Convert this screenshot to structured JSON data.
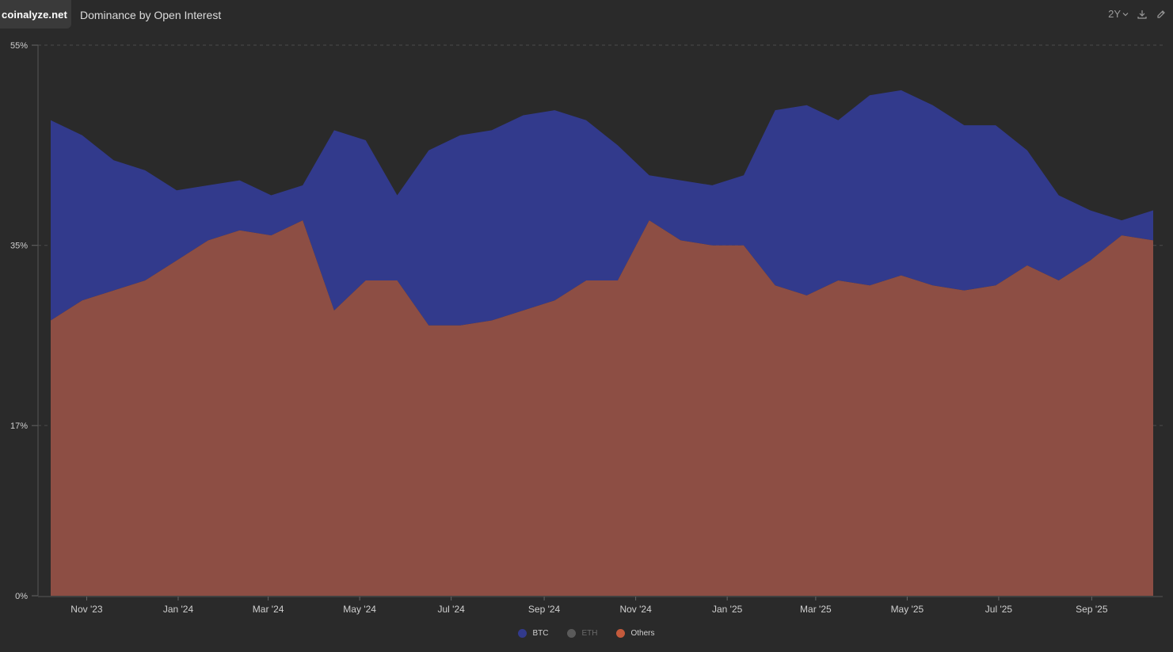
{
  "brand": "coinalyze.net",
  "title": "Dominance by Open Interest",
  "toolbar": {
    "range_label": "2Y",
    "download_icon": "download-icon",
    "edit_icon": "edit-icon"
  },
  "colors": {
    "background": "#2a2a2a",
    "btc": "#323a8c",
    "eth": "#646464",
    "others": "#8d4e44",
    "eth_legend_dot": "#5a5a5a",
    "others_legend_dot": "#c45a3c",
    "grid": "#4a4a4a",
    "axis_text": "#cfcfcf"
  },
  "chart_data": {
    "type": "area",
    "stacked": true,
    "x_ticks": [
      "Nov '23",
      "Jan '24",
      "Mar '24",
      "May '24",
      "Jul '24",
      "Sep '24",
      "Nov '24",
      "Jan '25",
      "Mar '25",
      "May '25",
      "Jul '25",
      "Sep '25"
    ],
    "y_ticks": [
      "55%",
      "35%",
      "17%",
      "0%"
    ],
    "ylim": [
      0,
      55
    ],
    "grid": "horizontal-dashed",
    "legend_position": "bottom-center",
    "legend": [
      "BTC",
      "ETH",
      "Others"
    ],
    "series": [
      {
        "name": "Others",
        "dates": [
          "2023-10-08",
          "2023-10-29",
          "2023-11-19",
          "2023-12-10",
          "2023-12-31",
          "2024-01-21",
          "2024-02-11",
          "2024-03-03",
          "2024-03-24",
          "2024-04-14",
          "2024-05-05",
          "2024-05-26",
          "2024-06-16",
          "2024-07-07",
          "2024-07-28",
          "2024-08-18",
          "2024-09-08",
          "2024-09-29",
          "2024-10-20",
          "2024-11-10",
          "2024-12-01",
          "2024-12-22",
          "2025-01-12",
          "2025-02-02",
          "2025-02-23",
          "2025-03-16",
          "2025-04-06",
          "2025-04-27",
          "2025-05-18",
          "2025-06-08",
          "2025-06-29",
          "2025-07-20",
          "2025-08-10",
          "2025-08-31",
          "2025-09-21",
          "2025-10-12"
        ],
        "values": [
          27.5,
          29.5,
          30.5,
          31.5,
          33.5,
          35.5,
          36.5,
          36.0,
          37.5,
          28.5,
          31.5,
          31.5,
          27.0,
          27.0,
          27.5,
          28.5,
          29.5,
          31.5,
          31.5,
          37.5,
          35.5,
          35.0,
          35.0,
          31.0,
          30.0,
          31.5,
          31.0,
          32.0,
          31.0,
          30.5,
          31.0,
          33.0,
          31.5,
          33.5,
          36.0,
          35.5
        ]
      },
      {
        "name": "BTC",
        "dates": [
          "2023-10-08",
          "2023-10-29",
          "2023-11-19",
          "2023-12-10",
          "2023-12-31",
          "2024-01-21",
          "2024-02-11",
          "2024-03-03",
          "2024-03-24",
          "2024-04-14",
          "2024-05-05",
          "2024-05-26",
          "2024-06-16",
          "2024-07-07",
          "2024-07-28",
          "2024-08-18",
          "2024-09-08",
          "2024-09-29",
          "2024-10-20",
          "2024-11-10",
          "2024-12-01",
          "2024-12-22",
          "2025-01-12",
          "2025-02-02",
          "2025-02-23",
          "2025-03-16",
          "2025-04-06",
          "2025-04-27",
          "2025-05-18",
          "2025-06-08",
          "2025-06-29",
          "2025-07-20",
          "2025-08-10",
          "2025-08-31",
          "2025-09-21",
          "2025-10-12"
        ],
        "values": [
          47.5,
          46.0,
          43.5,
          42.5,
          40.5,
          41.0,
          41.5,
          40.0,
          41.0,
          46.5,
          45.5,
          40.0,
          44.5,
          46.0,
          46.5,
          48.0,
          48.5,
          47.5,
          45.0,
          42.0,
          41.5,
          41.0,
          42.0,
          48.5,
          49.0,
          47.5,
          50.0,
          50.5,
          49.0,
          47.0,
          47.0,
          44.5,
          40.0,
          38.5,
          37.5,
          38.5
        ]
      },
      {
        "name": "ETH",
        "values": []
      }
    ]
  }
}
